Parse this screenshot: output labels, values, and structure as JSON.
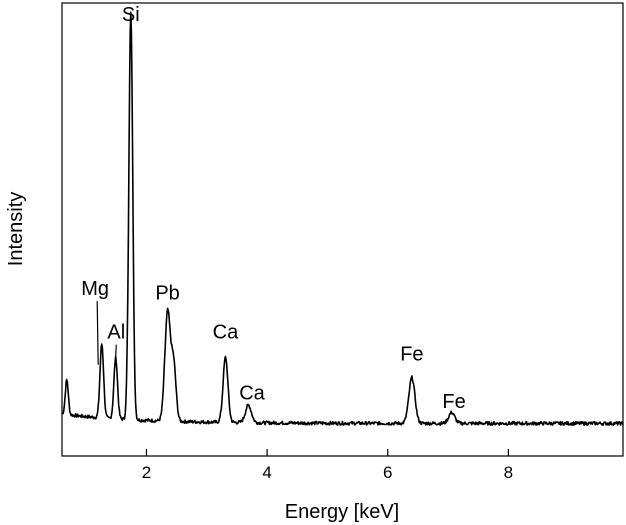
{
  "chart_data": {
    "type": "line",
    "title": "",
    "xlabel": "Energy [keV]",
    "ylabel": "Intensity",
    "xlim": [
      0.6,
      9.9
    ],
    "ylim": [
      0,
      1
    ],
    "x_ticks": [
      2,
      4,
      6,
      8
    ],
    "x_tick_labels": [
      "2",
      "4",
      "6",
      "8"
    ],
    "y_ticks_labeled": false,
    "grid": false,
    "legend": "none",
    "line_color": "#000000",
    "background": 0.045,
    "peaks": [
      {
        "energy": 0.68,
        "height": 0.08,
        "width": 0.025
      },
      {
        "energy": 1.26,
        "height": 0.17,
        "width": 0.03
      },
      {
        "energy": 1.49,
        "height": 0.14,
        "width": 0.03
      },
      {
        "energy": 1.74,
        "height": 0.94,
        "width": 0.032
      },
      {
        "energy": 2.35,
        "height": 0.25,
        "width": 0.045
      },
      {
        "energy": 2.45,
        "height": 0.13,
        "width": 0.04
      },
      {
        "energy": 3.31,
        "height": 0.15,
        "width": 0.04
      },
      {
        "energy": 3.69,
        "height": 0.04,
        "width": 0.05
      },
      {
        "energy": 6.4,
        "height": 0.105,
        "width": 0.05
      },
      {
        "energy": 7.06,
        "height": 0.025,
        "width": 0.05
      }
    ],
    "annotations": [
      {
        "text": "Si",
        "x": 1.74,
        "y": 0.97,
        "pointer": false
      },
      {
        "text": "Mg",
        "x": 1.15,
        "y": 0.34,
        "pointer": true,
        "px": 1.2,
        "py": 0.18
      },
      {
        "text": "Al",
        "x": 1.5,
        "y": 0.24,
        "pointer": true,
        "px": 1.49,
        "py": 0.2
      },
      {
        "text": "Pb",
        "x": 2.35,
        "y": 0.33,
        "pointer": false
      },
      {
        "text": "Ca",
        "x": 3.31,
        "y": 0.24,
        "pointer": false
      },
      {
        "text": "Ca",
        "x": 3.75,
        "y": 0.1,
        "pointer": false
      },
      {
        "text": "Fe",
        "x": 6.4,
        "y": 0.19,
        "pointer": false
      },
      {
        "text": "Fe",
        "x": 7.1,
        "y": 0.08,
        "pointer": false
      }
    ]
  }
}
